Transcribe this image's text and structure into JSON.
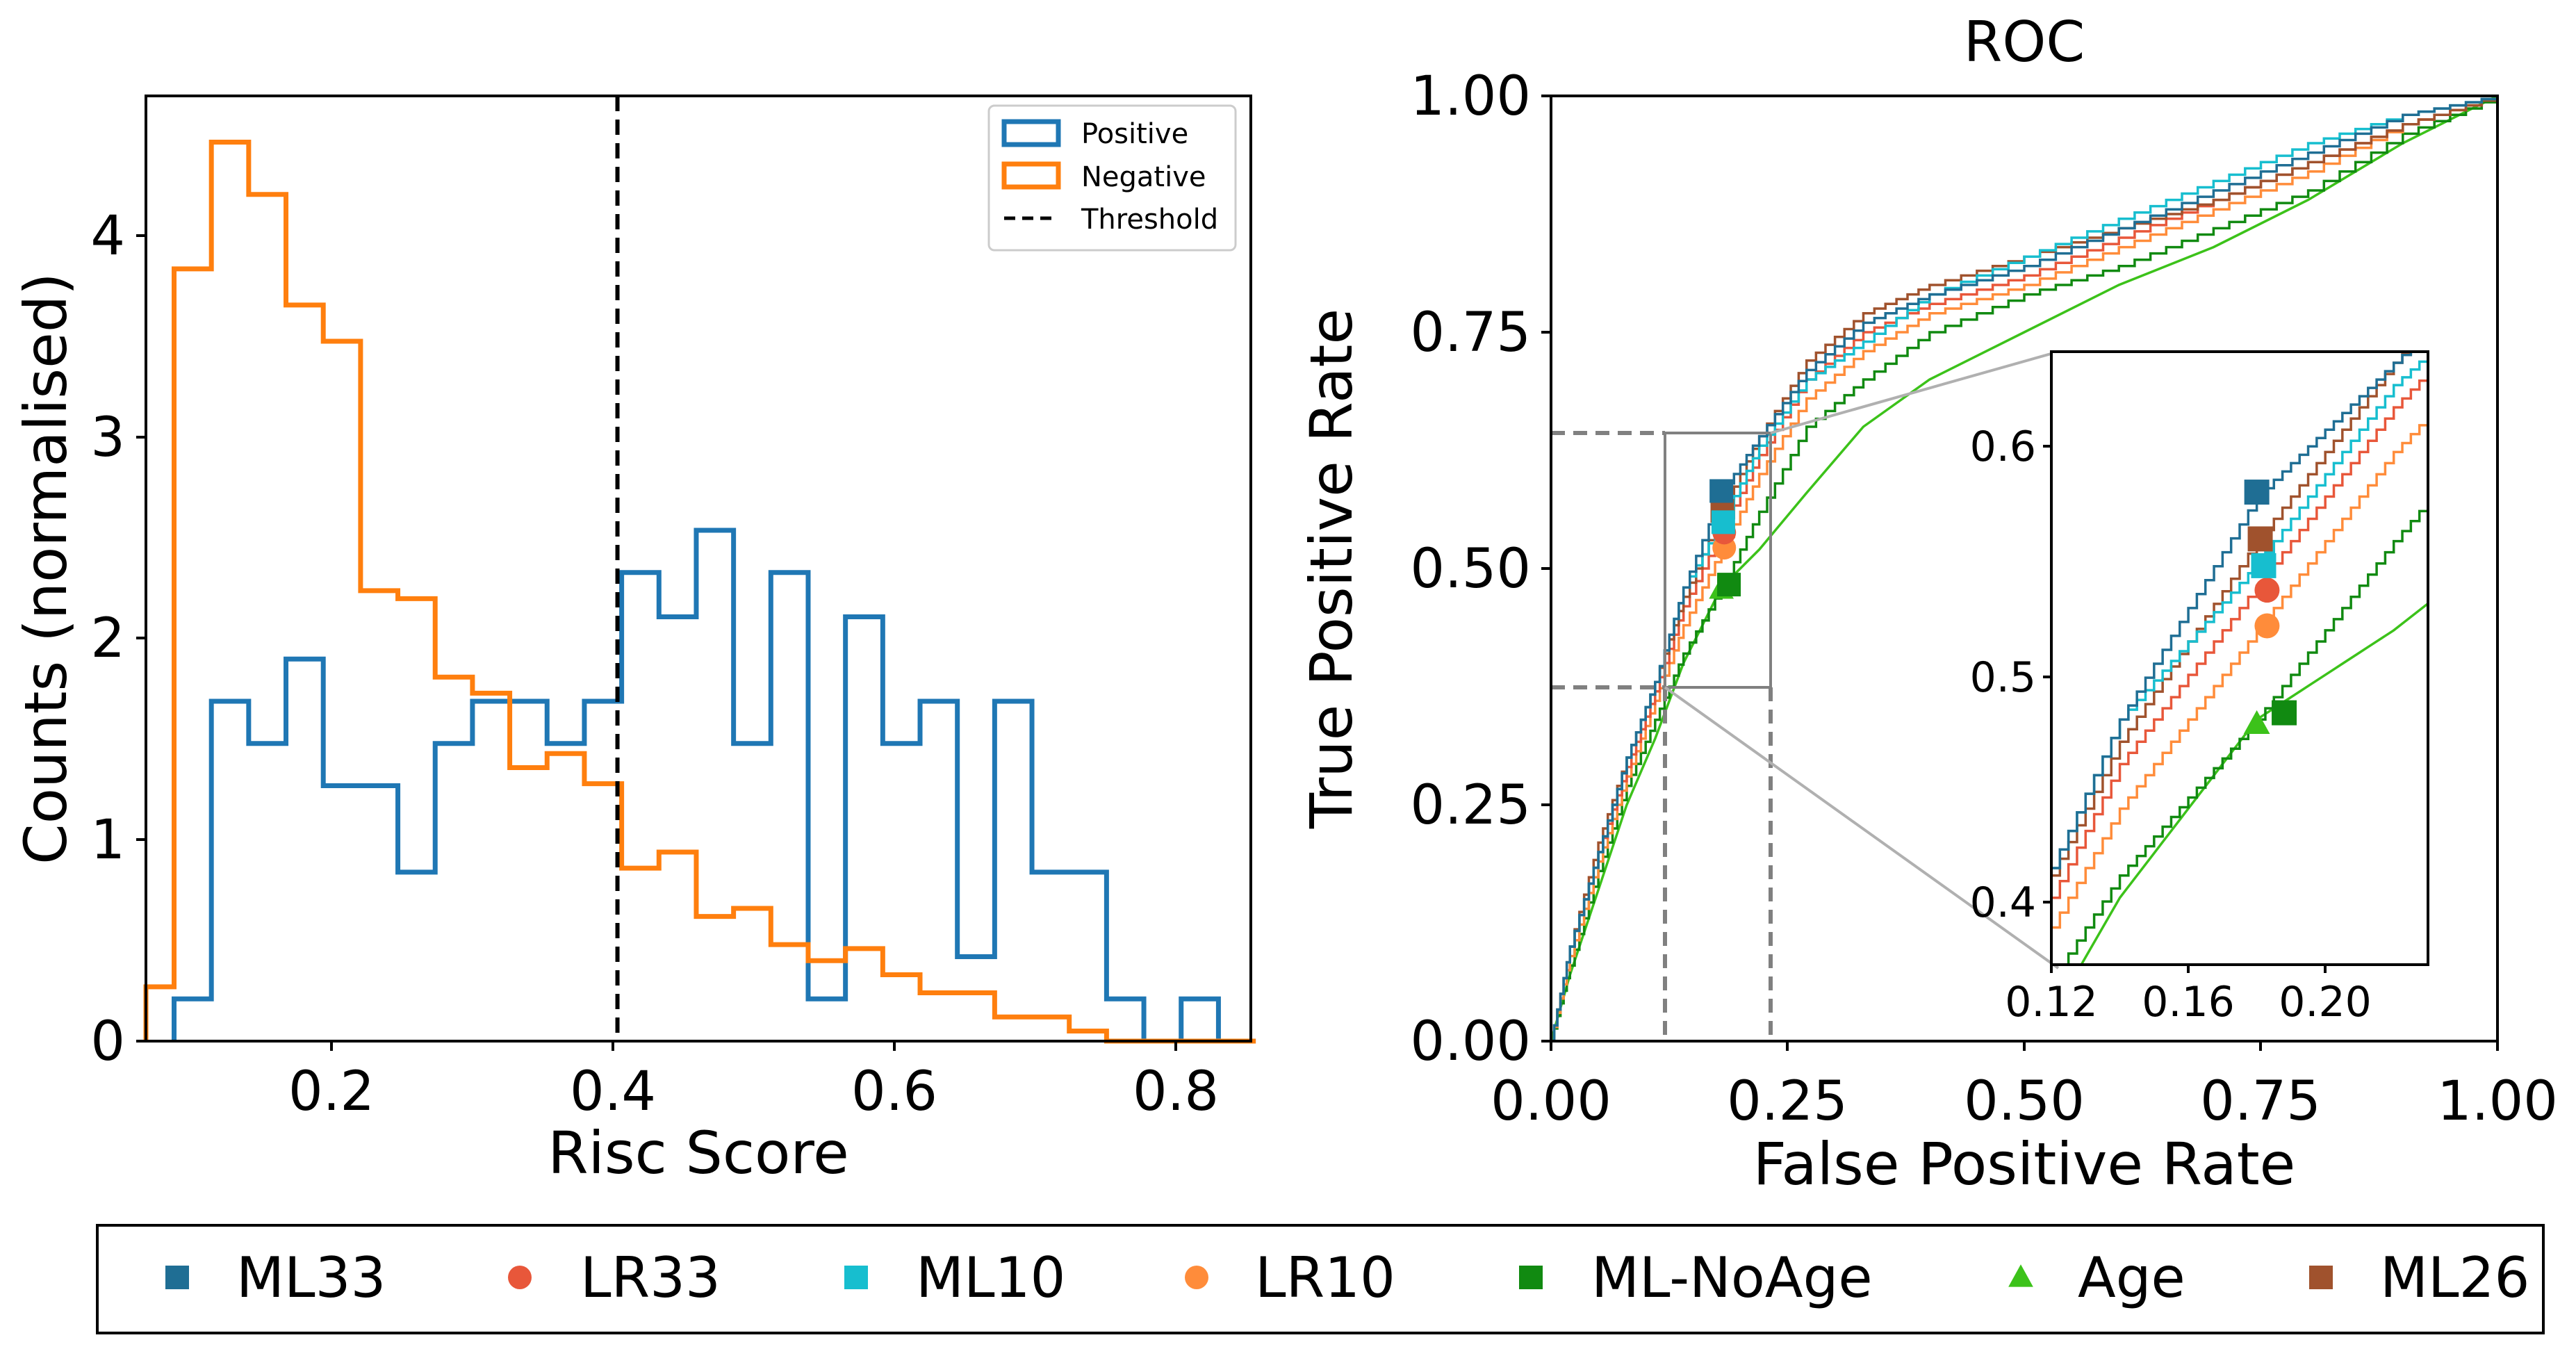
{
  "histogram": {
    "xlabel": "Risc Score",
    "ylabel": "Counts (normalised)",
    "legend": {
      "positive": "Positive",
      "negative": "Negative",
      "threshold": "Threshold"
    },
    "xticks": [
      "0.2",
      "0.4",
      "0.6",
      "0.8"
    ],
    "yticks": [
      "0",
      "1",
      "2",
      "3",
      "4"
    ]
  },
  "roc": {
    "title": "ROC",
    "xlabel": "False Positive Rate",
    "ylabel": "True Positive Rate",
    "xticks": [
      "0.00",
      "0.25",
      "0.50",
      "0.75",
      "1.00"
    ],
    "yticks": [
      "0.00",
      "0.25",
      "0.50",
      "0.75",
      "1.00"
    ],
    "inset_xticks": [
      "0.12",
      "0.16",
      "0.20"
    ],
    "inset_yticks": [
      "0.4",
      "0.5",
      "0.6"
    ]
  },
  "legend_models": [
    {
      "label": "ML33",
      "marker": "square",
      "color": "#1f6e94"
    },
    {
      "label": "LR33",
      "marker": "circle",
      "color": "#e8573a"
    },
    {
      "label": "ML10",
      "marker": "square",
      "color": "#17becf"
    },
    {
      "label": "LR10",
      "marker": "circle",
      "color": "#ff8c3a"
    },
    {
      "label": "ML-NoAge",
      "marker": "square",
      "color": "#118a11"
    },
    {
      "label": "Age",
      "marker": "triangle",
      "color": "#3cc21a"
    },
    {
      "label": "ML26",
      "marker": "square",
      "color": "#a0522d"
    }
  ],
  "colors": {
    "positive": "#1f77b4",
    "negative": "#ff7f0e",
    "threshold": "#000000"
  },
  "chart_data": [
    {
      "type": "histogram",
      "xlabel": "Risc Score",
      "ylabel": "Counts (normalised)",
      "xlim": [
        0.07,
        0.855
      ],
      "ylim": [
        0,
        4.7
      ],
      "threshold": 0.405,
      "series": [
        {
          "name": "Positive",
          "bin_edges": [
            0.09,
            0.1165,
            0.143,
            0.1695,
            0.196,
            0.2225,
            0.249,
            0.2755,
            0.302,
            0.3285,
            0.355,
            0.3815,
            0.408,
            0.4345,
            0.461,
            0.4875,
            0.514,
            0.5405,
            0.567,
            0.5935,
            0.62,
            0.6465,
            0.673,
            0.6995,
            0.726,
            0.7525,
            0.779,
            0.8055,
            0.832,
            0.8585
          ],
          "values": [
            0.21,
            1.69,
            1.48,
            1.9,
            1.27,
            1.27,
            0.84,
            1.48,
            1.69,
            1.69,
            1.48,
            1.69,
            2.33,
            2.11,
            2.54,
            1.48,
            2.33,
            0.21,
            2.11,
            1.48,
            1.69,
            0.42,
            1.69,
            0.84,
            0.84,
            0.21,
            0.0,
            0.21,
            0.0
          ]
        },
        {
          "name": "Negative",
          "bin_edges": [
            0.07,
            0.09,
            0.1165,
            0.143,
            0.1695,
            0.196,
            0.2225,
            0.249,
            0.2755,
            0.302,
            0.3285,
            0.355,
            0.3815,
            0.408,
            0.4345,
            0.461,
            0.4875,
            0.514,
            0.5405,
            0.567,
            0.5935,
            0.62,
            0.6465,
            0.673,
            0.6995,
            0.726,
            0.7525,
            0.779,
            0.8055,
            0.832,
            0.8585
          ],
          "values": [
            0.27,
            3.84,
            4.47,
            4.21,
            3.66,
            3.48,
            2.24,
            2.2,
            1.81,
            1.73,
            1.36,
            1.43,
            1.28,
            0.86,
            0.94,
            0.62,
            0.66,
            0.48,
            0.4,
            0.46,
            0.33,
            0.24,
            0.24,
            0.12,
            0.12,
            0.05,
            0.0,
            0.0,
            0.0,
            0.0
          ]
        }
      ]
    },
    {
      "type": "line",
      "title": "ROC",
      "xlabel": "False Positive Rate",
      "ylabel": "True Positive Rate",
      "xlim": [
        0,
        1
      ],
      "ylim": [
        0,
        1
      ],
      "series": [
        {
          "name": "ML33",
          "x": [
            0,
            0.02,
            0.05,
            0.08,
            0.11,
            0.14,
            0.18,
            0.22,
            0.27,
            0.33,
            0.4,
            0.5,
            0.6,
            0.7,
            0.8,
            0.9,
            1.0
          ],
          "y": [
            0,
            0.1,
            0.2,
            0.3,
            0.38,
            0.48,
            0.58,
            0.64,
            0.71,
            0.76,
            0.79,
            0.82,
            0.86,
            0.9,
            0.94,
            0.98,
            1.0
          ],
          "point": [
            0.18,
            0.582
          ]
        },
        {
          "name": "LR33",
          "x": [
            0,
            0.02,
            0.05,
            0.08,
            0.11,
            0.14,
            0.18,
            0.22,
            0.27,
            0.33,
            0.4,
            0.5,
            0.6,
            0.7,
            0.8,
            0.9,
            1.0
          ],
          "y": [
            0,
            0.1,
            0.2,
            0.29,
            0.37,
            0.46,
            0.54,
            0.62,
            0.7,
            0.75,
            0.78,
            0.81,
            0.85,
            0.89,
            0.93,
            0.97,
            1.0
          ],
          "point": [
            0.183,
            0.538
          ]
        },
        {
          "name": "ML10",
          "x": [
            0,
            0.02,
            0.05,
            0.08,
            0.11,
            0.14,
            0.18,
            0.22,
            0.27,
            0.33,
            0.4,
            0.5,
            0.6,
            0.7,
            0.8,
            0.9,
            1.0
          ],
          "y": [
            0,
            0.1,
            0.2,
            0.3,
            0.38,
            0.48,
            0.55,
            0.63,
            0.7,
            0.74,
            0.79,
            0.83,
            0.87,
            0.91,
            0.95,
            0.98,
            1.0
          ],
          "point": [
            0.182,
            0.549
          ]
        },
        {
          "name": "LR10",
          "x": [
            0,
            0.02,
            0.05,
            0.08,
            0.11,
            0.14,
            0.18,
            0.22,
            0.27,
            0.33,
            0.4,
            0.5,
            0.6,
            0.7,
            0.8,
            0.9,
            1.0
          ],
          "y": [
            0,
            0.09,
            0.19,
            0.28,
            0.36,
            0.44,
            0.52,
            0.6,
            0.68,
            0.73,
            0.77,
            0.8,
            0.84,
            0.88,
            0.92,
            0.97,
            1.0
          ],
          "point": [
            0.183,
            0.522
          ]
        },
        {
          "name": "ML-NoAge",
          "x": [
            0,
            0.02,
            0.05,
            0.08,
            0.11,
            0.14,
            0.18,
            0.22,
            0.27,
            0.33,
            0.4,
            0.5,
            0.6,
            0.7,
            0.8,
            0.9,
            1.0
          ],
          "y": [
            0,
            0.08,
            0.18,
            0.27,
            0.34,
            0.41,
            0.48,
            0.56,
            0.65,
            0.7,
            0.75,
            0.79,
            0.82,
            0.86,
            0.9,
            0.96,
            1.0
          ],
          "point": [
            0.188,
            0.483
          ]
        },
        {
          "name": "Age",
          "x": [
            0,
            0.02,
            0.05,
            0.08,
            0.11,
            0.14,
            0.18,
            0.22,
            0.27,
            0.33,
            0.4,
            0.5,
            0.6,
            0.7,
            0.8,
            0.9,
            1.0
          ],
          "y": [
            0,
            0.07,
            0.16,
            0.25,
            0.32,
            0.4,
            0.48,
            0.52,
            0.58,
            0.65,
            0.7,
            0.75,
            0.8,
            0.84,
            0.89,
            0.95,
            1.0
          ],
          "point": [
            0.18,
            0.478
          ]
        },
        {
          "name": "ML26",
          "x": [
            0,
            0.02,
            0.05,
            0.08,
            0.11,
            0.14,
            0.18,
            0.22,
            0.27,
            0.33,
            0.4,
            0.5,
            0.6,
            0.7,
            0.8,
            0.9,
            1.0
          ],
          "y": [
            0,
            0.1,
            0.21,
            0.3,
            0.38,
            0.47,
            0.56,
            0.64,
            0.72,
            0.77,
            0.8,
            0.83,
            0.86,
            0.89,
            0.93,
            0.97,
            1.0
          ],
          "point": [
            0.181,
            0.561
          ]
        }
      ],
      "inset": {
        "xlim": [
          0.12,
          0.23
        ],
        "ylim": [
          0.37,
          0.645
        ]
      }
    }
  ]
}
